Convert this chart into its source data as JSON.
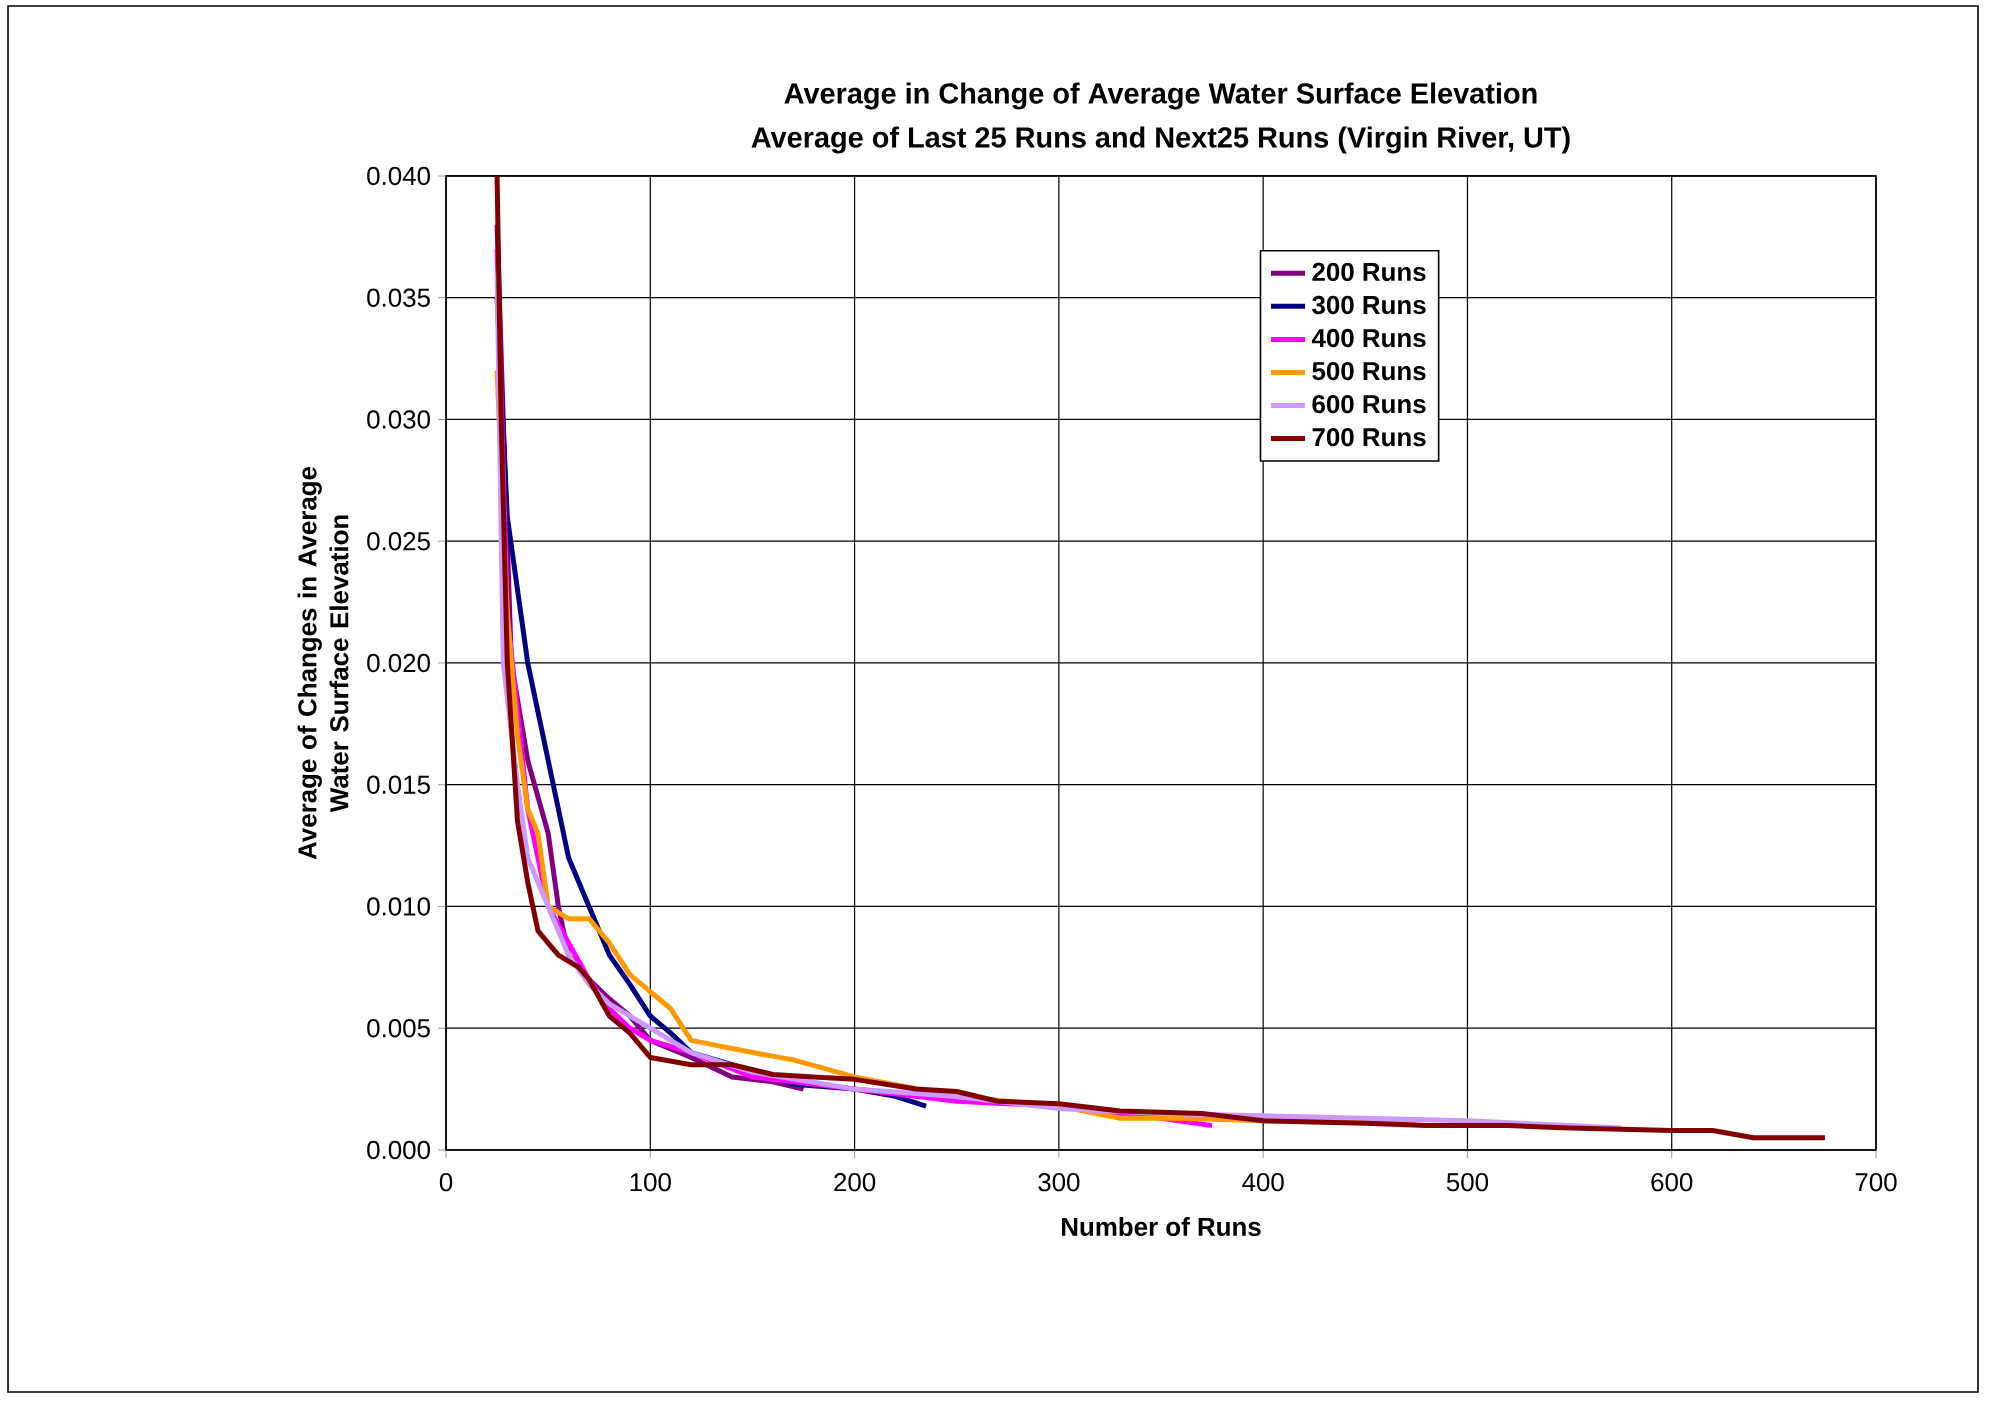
{
  "chart_data": {
    "type": "line",
    "title": "Average in Change of Average Water Surface Elevation",
    "subtitle": "Average of Last 25 Runs and Next25 Runs (Virgin River, UT)",
    "xlabel": "Number of Runs",
    "ylabel": "Average of Changes in Average Water Surface Elevation",
    "xlim": [
      0,
      700
    ],
    "xticks": [
      0,
      100,
      200,
      300,
      400,
      500,
      600,
      700
    ],
    "ylim": [
      0,
      0.04
    ],
    "yticks": [
      {
        "value": 0,
        "label": "0.000"
      },
      {
        "value": 0.005,
        "label": "0.005"
      },
      {
        "value": 0.01,
        "label": "0.010"
      },
      {
        "value": 0.015,
        "label": "0.015"
      },
      {
        "value": 0.02,
        "label": "0.020"
      },
      {
        "value": 0.025,
        "label": "0.025"
      },
      {
        "value": 0.03,
        "label": "0.030"
      },
      {
        "value": 0.035,
        "label": "0.035"
      },
      {
        "value": 0.04,
        "label": "0.040"
      }
    ],
    "grid": true,
    "legend": "top right",
    "marker": "none",
    "line_style": "solid",
    "series": [
      {
        "name": "200 Runs",
        "color": "#800080",
        "x": [
          25,
          28,
          32,
          40,
          50,
          55,
          60,
          70,
          80,
          90,
          100,
          120,
          140,
          160,
          175
        ],
        "values": [
          0.038,
          0.03,
          0.02,
          0.016,
          0.013,
          0.01,
          0.008,
          0.007,
          0.0062,
          0.0055,
          0.0045,
          0.0038,
          0.003,
          0.0028,
          0.0025
        ]
      },
      {
        "name": "300 Runs",
        "color": "#000080",
        "x": [
          25,
          30,
          35,
          40,
          45,
          50,
          55,
          60,
          70,
          80,
          90,
          100,
          110,
          120,
          140,
          170,
          200,
          220,
          235
        ],
        "values": [
          0.035,
          0.026,
          0.023,
          0.02,
          0.018,
          0.016,
          0.014,
          0.012,
          0.01,
          0.008,
          0.0068,
          0.0055,
          0.0048,
          0.004,
          0.0035,
          0.0027,
          0.0025,
          0.0022,
          0.0018
        ]
      },
      {
        "name": "400 Runs",
        "color": "#ff00ff",
        "x": [
          25,
          30,
          35,
          40,
          50,
          60,
          70,
          80,
          90,
          100,
          120,
          150,
          200,
          250,
          300,
          350,
          375
        ],
        "values": [
          0.037,
          0.022,
          0.018,
          0.014,
          0.01,
          0.0085,
          0.007,
          0.0058,
          0.005,
          0.0045,
          0.004,
          0.003,
          0.0025,
          0.002,
          0.0018,
          0.0013,
          0.001
        ]
      },
      {
        "name": "500 Runs",
        "color": "#ff9900",
        "x": [
          25,
          30,
          35,
          40,
          45,
          50,
          60,
          70,
          80,
          90,
          100,
          110,
          120,
          150,
          170,
          200,
          250,
          300,
          330,
          360,
          400,
          450,
          475
        ],
        "values": [
          0.032,
          0.022,
          0.017,
          0.014,
          0.013,
          0.01,
          0.0095,
          0.0095,
          0.0085,
          0.0072,
          0.0065,
          0.0058,
          0.0045,
          0.004,
          0.0037,
          0.003,
          0.0022,
          0.0018,
          0.0013,
          0.0013,
          0.0012,
          0.0012,
          0.0011
        ]
      },
      {
        "name": "600 Runs",
        "color": "#cc99ff",
        "x": [
          25,
          28,
          35,
          40,
          50,
          60,
          70,
          80,
          100,
          120,
          150,
          200,
          250,
          300,
          350,
          400,
          450,
          500,
          550,
          575
        ],
        "values": [
          0.036,
          0.02,
          0.015,
          0.012,
          0.01,
          0.008,
          0.0068,
          0.006,
          0.005,
          0.004,
          0.0032,
          0.0025,
          0.0022,
          0.0017,
          0.0015,
          0.0014,
          0.0013,
          0.0012,
          0.001,
          0.0009
        ]
      },
      {
        "name": "700 Runs",
        "color": "#800000",
        "x": [
          25,
          27,
          30,
          35,
          40,
          45,
          55,
          65,
          70,
          80,
          90,
          100,
          120,
          140,
          160,
          180,
          200,
          230,
          250,
          270,
          300,
          330,
          370,
          400,
          450,
          480,
          520,
          550,
          600,
          620,
          640,
          675
        ],
        "values": [
          0.04,
          0.03,
          0.02,
          0.0135,
          0.011,
          0.009,
          0.008,
          0.0075,
          0.007,
          0.0055,
          0.0048,
          0.0038,
          0.0035,
          0.0035,
          0.0031,
          0.003,
          0.0029,
          0.0025,
          0.0024,
          0.002,
          0.0019,
          0.0016,
          0.0015,
          0.0012,
          0.0011,
          0.001,
          0.001,
          0.0009,
          0.0008,
          0.0008,
          0.0005,
          0.0005
        ]
      }
    ]
  }
}
